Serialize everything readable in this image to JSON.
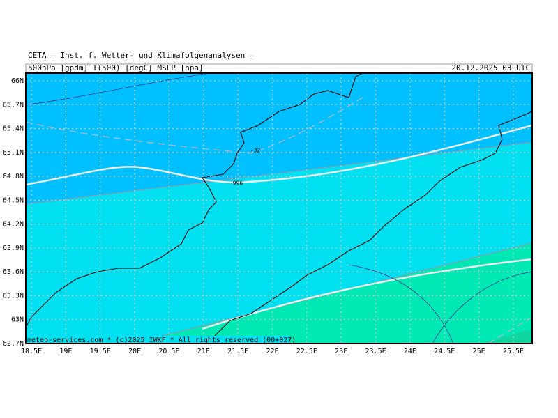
{
  "header": {
    "title": "CETA — Inst. f. Wetter- und Klimafolgenanalysen —",
    "fields": "500hPa [gpdm] T(500) [degC] MSLP [hpa]",
    "datetime": "20.12.2025 03 UTC"
  },
  "map": {
    "lat_labels": [
      "66N",
      "65.7N",
      "65.4N",
      "65.1N",
      "64.8N",
      "64.5N",
      "64.2N",
      "63.9N",
      "63.6N",
      "63.3N",
      "63N",
      "62.7N"
    ],
    "lon_labels": [
      "18.5E",
      "19E",
      "19.5E",
      "20E",
      "20.5E",
      "21E",
      "21.5E",
      "22E",
      "22.5E",
      "23E",
      "23.5E",
      "24E",
      "24.5E",
      "25E",
      "25.5E"
    ],
    "contour_labels": [
      "-32",
      "996"
    ],
    "footer": "meteo-services.com * (c)2025 IWKF * All rights reserved (00+027)"
  }
}
